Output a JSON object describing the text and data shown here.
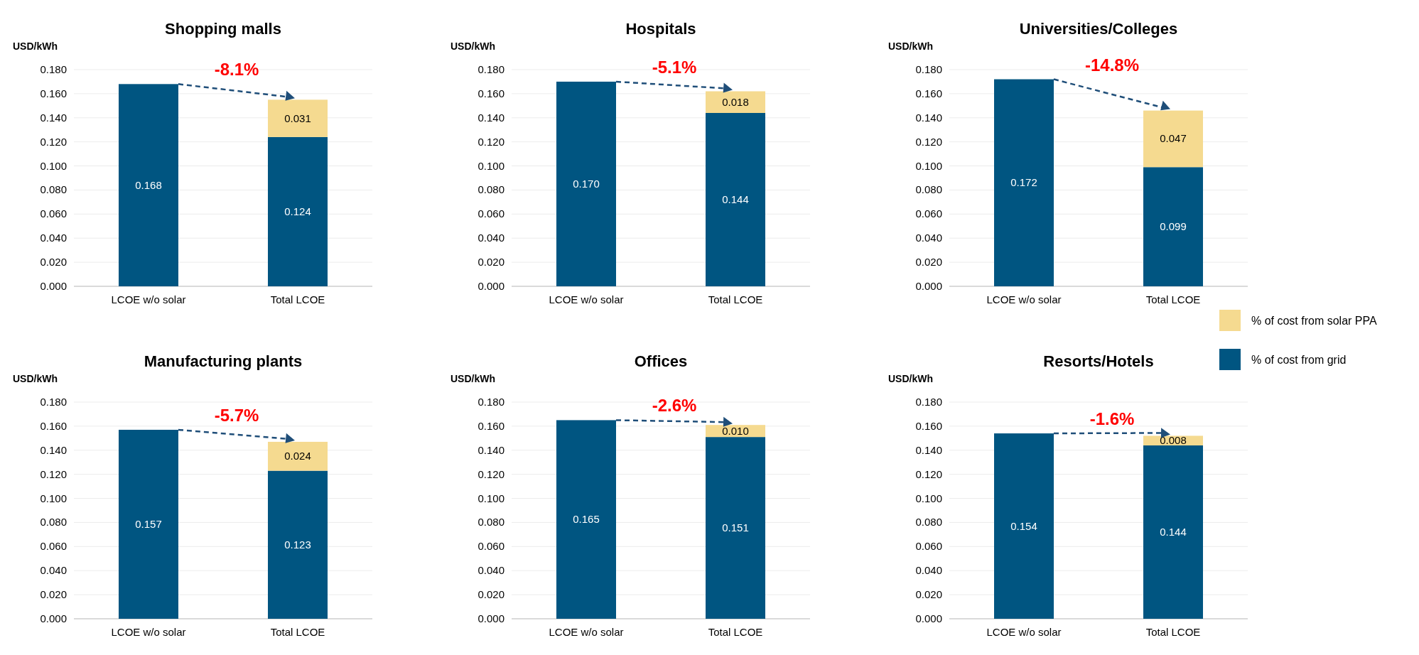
{
  "chart_data": [
    {
      "type": "bar",
      "stacked": true,
      "title": "Shopping malls",
      "ylabel": "USD/kWh",
      "categories": [
        "LCOE w/o solar",
        "Total LCOE"
      ],
      "ylim": [
        0,
        0.18
      ],
      "yticks": [
        {
          "value": 0,
          "label": "0.000"
        },
        {
          "value": 0.02,
          "label": "0.020"
        },
        {
          "value": 0.04,
          "label": "0.040"
        },
        {
          "value": 0.06,
          "label": "0.060"
        },
        {
          "value": 0.08,
          "label": "0.080"
        },
        {
          "value": 0.1,
          "label": "0.100"
        },
        {
          "value": 0.12,
          "label": "0.120"
        },
        {
          "value": 0.14,
          "label": "0.140"
        },
        {
          "value": 0.16,
          "label": "0.160"
        },
        {
          "value": 0.18,
          "label": "0.180"
        }
      ],
      "grid": "y",
      "annotations": [
        "-8.1%"
      ],
      "series": [
        {
          "color": "#005581",
          "values": [
            0.168,
            0.124
          ],
          "value_labels": [
            "0.168",
            "0.124"
          ]
        },
        {
          "color": "#f5da90",
          "values": [
            null,
            0.031
          ],
          "value_labels": [
            null,
            "0.031"
          ]
        }
      ]
    },
    {
      "type": "bar",
      "stacked": true,
      "title": "Hospitals",
      "ylabel": "USD/kWh",
      "categories": [
        "LCOE w/o solar",
        "Total LCOE"
      ],
      "ylim": [
        0,
        0.18
      ],
      "yticks": [
        {
          "value": 0,
          "label": "0.000"
        },
        {
          "value": 0.02,
          "label": "0.020"
        },
        {
          "value": 0.04,
          "label": "0.040"
        },
        {
          "value": 0.06,
          "label": "0.060"
        },
        {
          "value": 0.08,
          "label": "0.080"
        },
        {
          "value": 0.1,
          "label": "0.100"
        },
        {
          "value": 0.12,
          "label": "0.120"
        },
        {
          "value": 0.14,
          "label": "0.140"
        },
        {
          "value": 0.16,
          "label": "0.160"
        },
        {
          "value": 0.18,
          "label": "0.180"
        }
      ],
      "grid": "y",
      "annotations": [
        "-5.1%"
      ],
      "series": [
        {
          "color": "#005581",
          "values": [
            0.17,
            0.144
          ],
          "value_labels": [
            "0.170",
            "0.144"
          ]
        },
        {
          "color": "#f5da90",
          "values": [
            null,
            0.018
          ],
          "value_labels": [
            null,
            "0.018"
          ]
        }
      ]
    },
    {
      "type": "bar",
      "stacked": true,
      "title": "Universities/Colleges",
      "ylabel": "USD/kWh",
      "categories": [
        "LCOE w/o solar",
        "Total LCOE"
      ],
      "ylim": [
        0,
        0.18
      ],
      "yticks": [
        {
          "value": 0,
          "label": "0.000"
        },
        {
          "value": 0.02,
          "label": "0.020"
        },
        {
          "value": 0.04,
          "label": "0.040"
        },
        {
          "value": 0.06,
          "label": "0.060"
        },
        {
          "value": 0.08,
          "label": "0.080"
        },
        {
          "value": 0.1,
          "label": "0.100"
        },
        {
          "value": 0.12,
          "label": "0.120"
        },
        {
          "value": 0.14,
          "label": "0.140"
        },
        {
          "value": 0.16,
          "label": "0.160"
        },
        {
          "value": 0.18,
          "label": "0.180"
        }
      ],
      "grid": "y",
      "annotations": [
        "-14.8%"
      ],
      "series": [
        {
          "color": "#005581",
          "values": [
            0.172,
            0.099
          ],
          "value_labels": [
            "0.172",
            "0.099"
          ]
        },
        {
          "color": "#f5da90",
          "values": [
            null,
            0.047
          ],
          "value_labels": [
            null,
            "0.047"
          ]
        }
      ]
    },
    {
      "type": "bar",
      "stacked": true,
      "title": "Manufacturing plants",
      "ylabel": "USD/kWh",
      "categories": [
        "LCOE w/o solar",
        "Total LCOE"
      ],
      "ylim": [
        0,
        0.18
      ],
      "yticks": [
        {
          "value": 0,
          "label": "0.000"
        },
        {
          "value": 0.02,
          "label": "0.020"
        },
        {
          "value": 0.04,
          "label": "0.040"
        },
        {
          "value": 0.06,
          "label": "0.060"
        },
        {
          "value": 0.08,
          "label": "0.080"
        },
        {
          "value": 0.1,
          "label": "0.100"
        },
        {
          "value": 0.12,
          "label": "0.120"
        },
        {
          "value": 0.14,
          "label": "0.140"
        },
        {
          "value": 0.16,
          "label": "0.160"
        },
        {
          "value": 0.18,
          "label": "0.180"
        }
      ],
      "grid": "y",
      "annotations": [
        "-5.7%"
      ],
      "series": [
        {
          "color": "#005581",
          "values": [
            0.157,
            0.123
          ],
          "value_labels": [
            "0.157",
            "0.123"
          ]
        },
        {
          "color": "#f5da90",
          "values": [
            null,
            0.024
          ],
          "value_labels": [
            null,
            "0.024"
          ]
        }
      ]
    },
    {
      "type": "bar",
      "stacked": true,
      "title": "Offices",
      "ylabel": "USD/kWh",
      "categories": [
        "LCOE w/o solar",
        "Total LCOE"
      ],
      "ylim": [
        0,
        0.18
      ],
      "yticks": [
        {
          "value": 0,
          "label": "0.000"
        },
        {
          "value": 0.02,
          "label": "0.020"
        },
        {
          "value": 0.04,
          "label": "0.040"
        },
        {
          "value": 0.06,
          "label": "0.060"
        },
        {
          "value": 0.08,
          "label": "0.080"
        },
        {
          "value": 0.1,
          "label": "0.100"
        },
        {
          "value": 0.12,
          "label": "0.120"
        },
        {
          "value": 0.14,
          "label": "0.140"
        },
        {
          "value": 0.16,
          "label": "0.160"
        },
        {
          "value": 0.18,
          "label": "0.180"
        }
      ],
      "grid": "y",
      "annotations": [
        "-2.6%"
      ],
      "series": [
        {
          "color": "#005581",
          "values": [
            0.165,
            0.151
          ],
          "value_labels": [
            "0.165",
            "0.151"
          ]
        },
        {
          "color": "#f5da90",
          "values": [
            null,
            0.01
          ],
          "value_labels": [
            null,
            "0.010"
          ]
        }
      ]
    },
    {
      "type": "bar",
      "stacked": true,
      "title": "Resorts/Hotels",
      "ylabel": "USD/kWh",
      "categories": [
        "LCOE w/o solar",
        "Total LCOE"
      ],
      "ylim": [
        0,
        0.18
      ],
      "yticks": [
        {
          "value": 0,
          "label": "0.000"
        },
        {
          "value": 0.02,
          "label": "0.020"
        },
        {
          "value": 0.04,
          "label": "0.040"
        },
        {
          "value": 0.06,
          "label": "0.060"
        },
        {
          "value": 0.08,
          "label": "0.080"
        },
        {
          "value": 0.1,
          "label": "0.100"
        },
        {
          "value": 0.12,
          "label": "0.120"
        },
        {
          "value": 0.14,
          "label": "0.140"
        },
        {
          "value": 0.16,
          "label": "0.160"
        },
        {
          "value": 0.18,
          "label": "0.180"
        }
      ],
      "grid": "y",
      "annotations": [
        "-1.6%"
      ],
      "legend": "top right",
      "series": [
        {
          "name": "% of cost from grid",
          "color": "#005581",
          "values": [
            0.154,
            0.144
          ],
          "value_labels": [
            "0.154",
            "0.144"
          ]
        },
        {
          "name": "% of cost from solar PPA",
          "color": "#f5da90",
          "values": [
            null,
            0.008
          ],
          "value_labels": [
            null,
            "0.008"
          ]
        }
      ]
    }
  ]
}
